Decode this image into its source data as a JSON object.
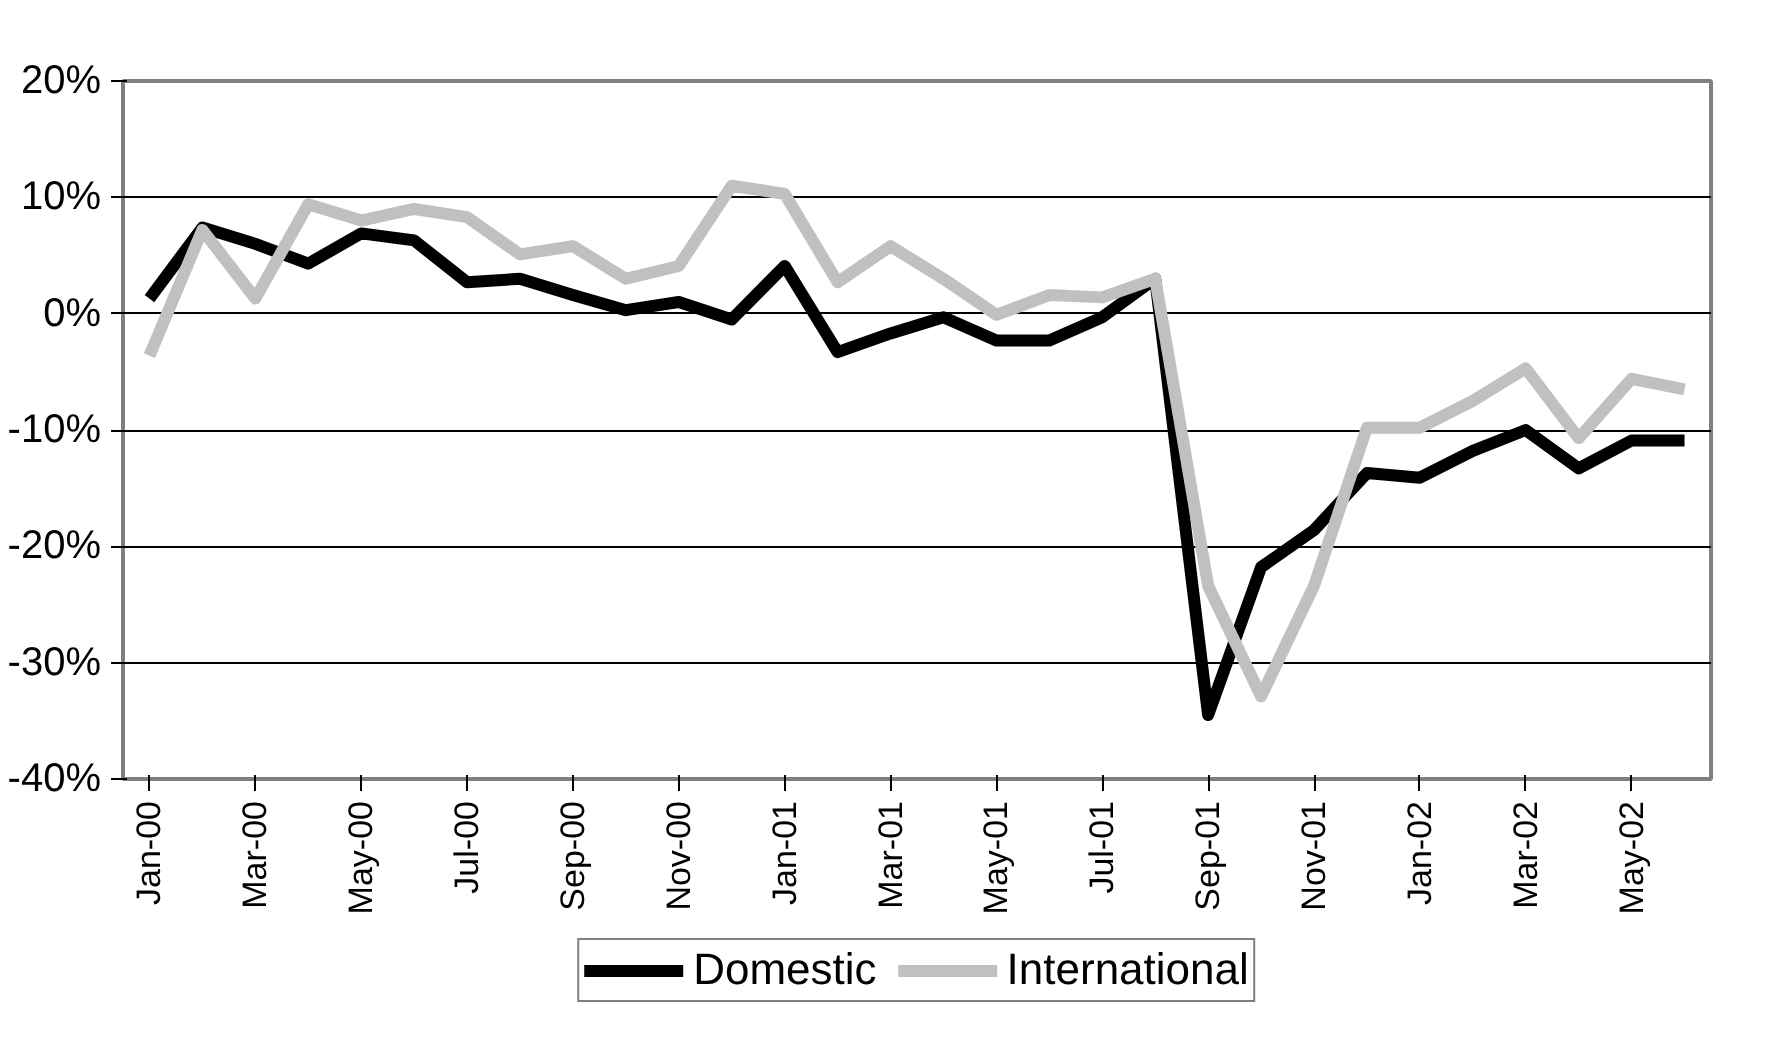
{
  "chart_data": {
    "type": "line",
    "categories": [
      "Jan-00",
      null,
      "Mar-00",
      null,
      "May-00",
      null,
      "Jul-00",
      null,
      "Sep-00",
      null,
      "Nov-00",
      null,
      "Jan-01",
      null,
      "Mar-01",
      null,
      "May-01",
      null,
      "Jul-01",
      null,
      "Sep-01",
      null,
      "Nov-01",
      null,
      "Jan-02",
      null,
      "Mar-02",
      null,
      "May-02",
      null
    ],
    "series": [
      {
        "name": "Domestic",
        "color": "#000000",
        "values": [
          1.3,
          7.4,
          6.0,
          4.3,
          6.9,
          6.3,
          2.7,
          3.0,
          1.6,
          0.3,
          1.0,
          -0.5,
          4.1,
          -3.3,
          -1.7,
          -0.3,
          -2.3,
          -2.3,
          -0.3,
          3.0,
          -34.5,
          -21.8,
          -18.6,
          -13.7,
          -14.1,
          -11.8,
          -10.0,
          -13.3,
          -10.9,
          -10.9
        ]
      },
      {
        "name": "International",
        "color": "#c0c0c0",
        "values": [
          -3.6,
          7.2,
          1.3,
          9.4,
          8.0,
          9.0,
          8.3,
          5.1,
          5.8,
          3.0,
          4.1,
          11.0,
          10.3,
          2.7,
          5.8,
          3.0,
          -0.1,
          1.6,
          1.4,
          3.0,
          -23.4,
          -32.9,
          -23.4,
          -9.8,
          -9.8,
          -7.5,
          -4.7,
          -10.7,
          -5.6,
          -6.5
        ]
      }
    ],
    "ylim": [
      -40,
      20
    ],
    "yticks": [
      {
        "value": -40,
        "label": "-40%"
      },
      {
        "value": -30,
        "label": "-30%"
      },
      {
        "value": -20,
        "label": "-20%"
      },
      {
        "value": -10,
        "label": "-10%"
      },
      {
        "value": 0,
        "label": "0%"
      },
      {
        "value": 10,
        "label": "10%"
      },
      {
        "value": 20,
        "label": "20%"
      }
    ],
    "grid": "y",
    "legend": "bottom",
    "marker": "none",
    "line_style": "solid"
  }
}
